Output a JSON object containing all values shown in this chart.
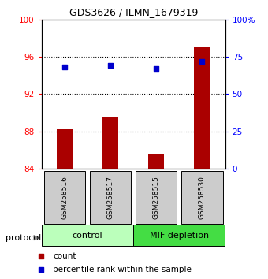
{
  "title": "GDS3626 / ILMN_1679319",
  "samples": [
    "GSM258516",
    "GSM258517",
    "GSM258515",
    "GSM258530"
  ],
  "bar_values": [
    88.2,
    89.6,
    85.5,
    97.0
  ],
  "percentile_values": [
    68,
    69,
    67,
    72
  ],
  "ylim_left": [
    84,
    100
  ],
  "ylim_right": [
    0,
    100
  ],
  "yticks_left": [
    84,
    88,
    92,
    96,
    100
  ],
  "yticks_right": [
    0,
    25,
    50,
    75,
    100
  ],
  "ytick_labels_left": [
    "84",
    "88",
    "92",
    "96",
    "100"
  ],
  "ytick_labels_right": [
    "0",
    "25",
    "50",
    "75",
    "100%"
  ],
  "bar_color": "#aa0000",
  "dot_color": "#0000cc",
  "bar_bottom": 84,
  "group_control_color": "#bbffbb",
  "group_mif_color": "#44dd44",
  "protocol_label": "protocol",
  "legend_count_label": "count",
  "legend_percentile_label": "percentile rank within the sample",
  "sample_box_color": "#cccccc",
  "grid_dotted_ticks": [
    88,
    92,
    96
  ]
}
